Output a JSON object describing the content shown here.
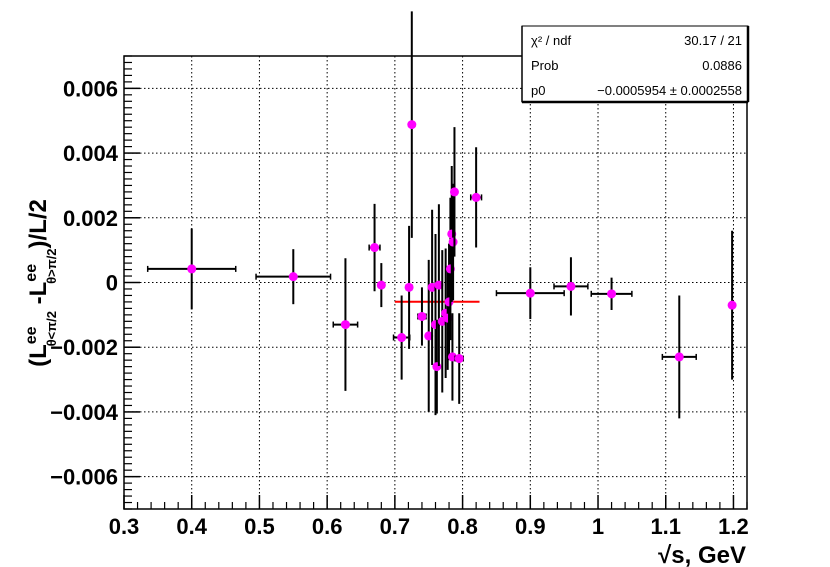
{
  "chart_data": {
    "type": "scatter",
    "title": "",
    "xlabel": "√s, GeV",
    "ylabel": "(Lee θ<π/2 - Lee θ>π/2)/L/2",
    "xlim": [
      0.3,
      1.22
    ],
    "ylim": [
      -0.007,
      0.007
    ],
    "x_ticks": [
      0.3,
      0.4,
      0.5,
      0.6,
      0.7,
      0.8,
      0.9,
      1.0,
      1.1,
      1.2
    ],
    "x_tick_labels": [
      "0.3",
      "0.4",
      "0.5",
      "0.6",
      "0.7",
      "0.8",
      "0.9",
      "1",
      "1.1",
      "1.2"
    ],
    "y_ticks": [
      -0.006,
      -0.004,
      -0.002,
      0,
      0.002,
      0.004,
      0.006
    ],
    "y_tick_labels": [
      "−0.006",
      "−0.004",
      "−0.002",
      "0",
      "0.002",
      "0.004",
      "0.006"
    ],
    "grid": true,
    "marker_color": "#ff00ff",
    "error_bar_color": "#000000",
    "fit": {
      "type": "constant",
      "x_range": [
        0.7,
        0.825
      ],
      "value": -0.0005954,
      "color": "#ff0000"
    },
    "stats_box": {
      "rows": [
        {
          "label": "χ² / ndf",
          "value": "30.17 / 21"
        },
        {
          "label": "Prob",
          "value": "0.0886"
        },
        {
          "label": "p0",
          "value": "−0.0005954 ± 0.0002558"
        }
      ]
    },
    "points": [
      {
        "x": 0.4,
        "xerr": 0.065,
        "y": 0.00042,
        "yerr": 0.00125
      },
      {
        "x": 0.55,
        "xerr": 0.055,
        "y": 0.00018,
        "yerr": 0.00085
      },
      {
        "x": 0.627,
        "xerr": 0.018,
        "y": -0.0013,
        "yerr": 0.00205
      },
      {
        "x": 0.67,
        "xerr": 0.008,
        "y": 0.00108,
        "yerr": 0.00135
      },
      {
        "x": 0.68,
        "xerr": 0.004,
        "y": -8e-05,
        "yerr": 0.00068
      },
      {
        "x": 0.71,
        "xerr": 0.012,
        "y": -0.0017,
        "yerr": 0.0013
      },
      {
        "x": 0.721,
        "xerr": 0.004,
        "y": -0.00015,
        "yerr": 0.0019
      },
      {
        "x": 0.725,
        "xerr": 0.003,
        "y": 0.00488,
        "yerr": 0.0035
      },
      {
        "x": 0.74,
        "xerr": 0.006,
        "y": -0.00105,
        "yerr": 0.0009
      },
      {
        "x": 0.75,
        "xerr": 0.003,
        "y": -0.00165,
        "yerr": 0.00235
      },
      {
        "x": 0.755,
        "xerr": 0.003,
        "y": -0.00015,
        "yerr": 0.0024
      },
      {
        "x": 0.76,
        "xerr": 0.003,
        "y": -0.0013,
        "yerr": 0.0028
      },
      {
        "x": 0.762,
        "xerr": 0.003,
        "y": -0.0026,
        "yerr": 0.00145
      },
      {
        "x": 0.765,
        "xerr": 0.003,
        "y": -8e-05,
        "yerr": 0.0025
      },
      {
        "x": 0.77,
        "xerr": 0.003,
        "y": -0.0012,
        "yerr": 0.0022
      },
      {
        "x": 0.775,
        "xerr": 0.003,
        "y": -0.00095,
        "yerr": 0.002
      },
      {
        "x": 0.778,
        "xerr": 0.003,
        "y": -0.0011,
        "yerr": 0.0016
      },
      {
        "x": 0.78,
        "xerr": 0.003,
        "y": -0.0006,
        "yerr": 0.0018
      },
      {
        "x": 0.782,
        "xerr": 0.003,
        "y": 0.00042,
        "yerr": 0.0022
      },
      {
        "x": 0.784,
        "xerr": 0.003,
        "y": 0.0015,
        "yerr": 0.0021
      },
      {
        "x": 0.786,
        "xerr": 0.003,
        "y": 0.00125,
        "yerr": 0.0018
      },
      {
        "x": 0.788,
        "xerr": 0.003,
        "y": 0.0028,
        "yerr": 0.002
      },
      {
        "x": 0.785,
        "xerr": 0.004,
        "y": -0.0023,
        "yerr": 0.00135
      },
      {
        "x": 0.795,
        "xerr": 0.006,
        "y": -0.00235,
        "yerr": 0.0014
      },
      {
        "x": 0.82,
        "xerr": 0.008,
        "y": 0.00263,
        "yerr": 0.00155
      },
      {
        "x": 0.9,
        "xerr": 0.05,
        "y": -0.00033,
        "yerr": 0.0008
      },
      {
        "x": 0.96,
        "xerr": 0.025,
        "y": -0.00012,
        "yerr": 0.0009
      },
      {
        "x": 1.02,
        "xerr": 0.03,
        "y": -0.00035,
        "yerr": 0.0005
      },
      {
        "x": 1.12,
        "xerr": 0.025,
        "y": -0.0023,
        "yerr": 0.0019
      },
      {
        "x": 1.198,
        "xerr": 0.003,
        "y": -0.0007,
        "yerr": 0.0023
      }
    ]
  }
}
